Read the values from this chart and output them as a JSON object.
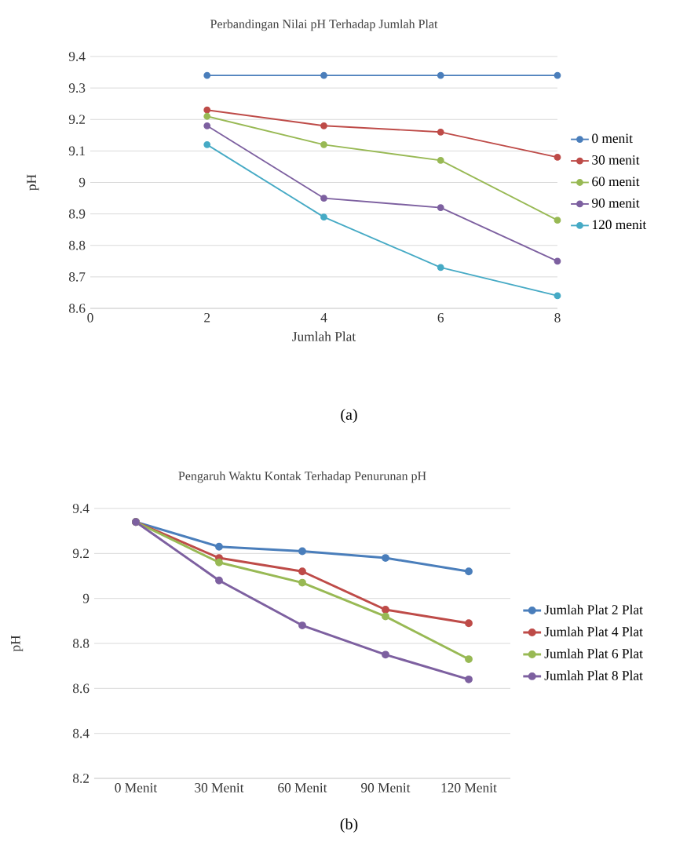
{
  "chart_data": [
    {
      "type": "line",
      "title": "Perbandingan Nilai pH Terhadap Jumlah Plat",
      "xlabel": "Jumlah Plat",
      "ylabel": "pH",
      "x": [
        2,
        4,
        6,
        8
      ],
      "xlim": [
        0,
        8
      ],
      "xticks": [
        0,
        2,
        4,
        6,
        8
      ],
      "ylim": [
        8.6,
        9.4
      ],
      "yticks": [
        8.6,
        8.7,
        8.8,
        8.9,
        9,
        9.1,
        9.2,
        9.3,
        9.4
      ],
      "grid": "y",
      "legend": "right",
      "marker": "circle",
      "line_style": "solid",
      "annotations": [
        "(a)"
      ],
      "series": [
        {
          "name": "0 menit",
          "color": "#4a7ebb",
          "values": [
            9.34,
            9.34,
            9.34,
            9.34
          ]
        },
        {
          "name": "30 menit",
          "color": "#be4b48",
          "values": [
            9.23,
            9.18,
            9.16,
            9.08
          ]
        },
        {
          "name": "60 menit",
          "color": "#98b954",
          "values": [
            9.21,
            9.12,
            9.07,
            8.88
          ]
        },
        {
          "name": "90 menit",
          "color": "#7d60a0",
          "values": [
            9.18,
            8.95,
            8.92,
            8.75
          ]
        },
        {
          "name": "120 menit",
          "color": "#46aac5",
          "values": [
            9.12,
            8.89,
            8.73,
            8.64
          ]
        }
      ]
    },
    {
      "type": "line",
      "title": "Pengaruh Waktu Kontak Terhadap Penurunan pH",
      "ylabel": "pH",
      "categories": [
        "0 Menit",
        "30 Menit",
        "60 Menit",
        "90 Menit",
        "120 Menit"
      ],
      "ylim": [
        8.2,
        9.4
      ],
      "yticks": [
        8.2,
        8.4,
        8.6,
        8.8,
        9,
        9.2,
        9.4
      ],
      "grid": "y",
      "legend": "right",
      "marker": "circle",
      "line_style": "solid",
      "annotations": [
        "(b)"
      ],
      "series": [
        {
          "name": "Jumlah Plat 2 Plat",
          "color": "#4a7ebb",
          "values": [
            9.34,
            9.23,
            9.21,
            9.18,
            9.12
          ]
        },
        {
          "name": "Jumlah Plat 4 Plat",
          "color": "#be4b48",
          "values": [
            9.34,
            9.18,
            9.12,
            8.95,
            8.89
          ]
        },
        {
          "name": "Jumlah Plat 6 Plat",
          "color": "#98b954",
          "values": [
            9.34,
            9.16,
            9.07,
            8.92,
            8.73
          ]
        },
        {
          "name": "Jumlah Plat 8 Plat",
          "color": "#7d60a0",
          "values": [
            9.34,
            9.08,
            8.88,
            8.75,
            8.64
          ]
        }
      ]
    }
  ]
}
